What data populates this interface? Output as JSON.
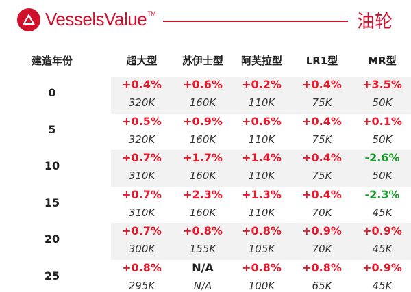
{
  "brand": {
    "name": "VesselsValue",
    "trademark": "TM",
    "color": "#d0112b"
  },
  "section_title": "油轮",
  "table": {
    "year_header": "建造年份",
    "columns": [
      "超大型",
      "苏伊士型",
      "阿芙拉型",
      "LR1型",
      "MR型"
    ],
    "rows": [
      {
        "year": "0",
        "changes": [
          "+0.4%",
          "+0.6%",
          "+0.2%",
          "+0.4%",
          "+3.5%"
        ],
        "values": [
          "320K",
          "160K",
          "110K",
          "75K",
          "50K"
        ]
      },
      {
        "year": "5",
        "changes": [
          "+0.5%",
          "+0.9%",
          "+0.6%",
          "+0.4%",
          "+0.1%"
        ],
        "values": [
          "320K",
          "160K",
          "110K",
          "75K",
          "50K"
        ]
      },
      {
        "year": "10",
        "changes": [
          "+0.7%",
          "+1.7%",
          "+1.4%",
          "+0.4%",
          "-2.6%"
        ],
        "values": [
          "310K",
          "160K",
          "110K",
          "75K",
          "50K"
        ]
      },
      {
        "year": "15",
        "changes": [
          "+0.7%",
          "+2.3%",
          "+1.3%",
          "+0.4%",
          "-2.3%"
        ],
        "values": [
          "310K",
          "160K",
          "110K",
          "70K",
          "45K"
        ]
      },
      {
        "year": "20",
        "changes": [
          "+0.7%",
          "+0.8%",
          "+0.8%",
          "+0.9%",
          "+0.9%"
        ],
        "values": [
          "300K",
          "155K",
          "105K",
          "70K",
          "45K"
        ]
      },
      {
        "year": "25",
        "changes": [
          "+0.8%",
          "N/A",
          "+0.8%",
          "+0.8%",
          "+0.9%"
        ],
        "values": [
          "295K",
          "N/A",
          "100K",
          "65K",
          "45K"
        ]
      }
    ]
  },
  "colors": {
    "increase": "#e8192c",
    "decrease": "#1a9a2c",
    "band": "#f2f2f2"
  }
}
